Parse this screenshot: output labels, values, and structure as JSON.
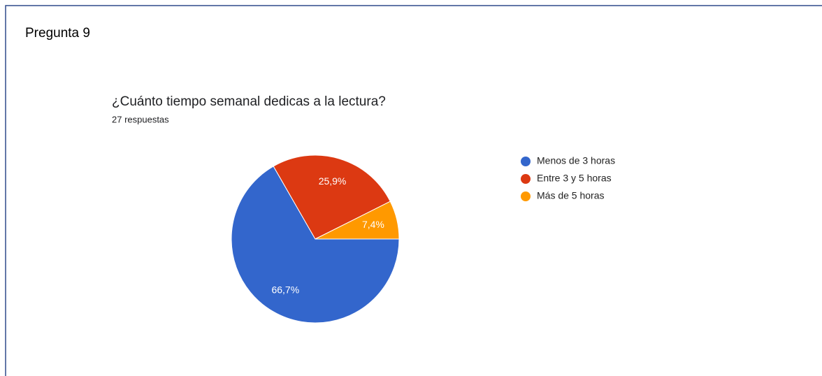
{
  "heading": "Pregunta 9",
  "chart_data": {
    "type": "pie",
    "title": "¿Cuánto tiempo semanal dedicas a la lectura?",
    "subtitle": "27 respuestas",
    "categories": [
      "Menos de 3 horas",
      "Entre 3 y 5 horas",
      "Más de 5 horas"
    ],
    "values": [
      66.7,
      25.9,
      7.4
    ],
    "value_labels": [
      "66,7%",
      "25,9%",
      "7,4%"
    ],
    "colors": [
      "#3366cc",
      "#dc3912",
      "#ff9900"
    ],
    "legend": "right"
  }
}
